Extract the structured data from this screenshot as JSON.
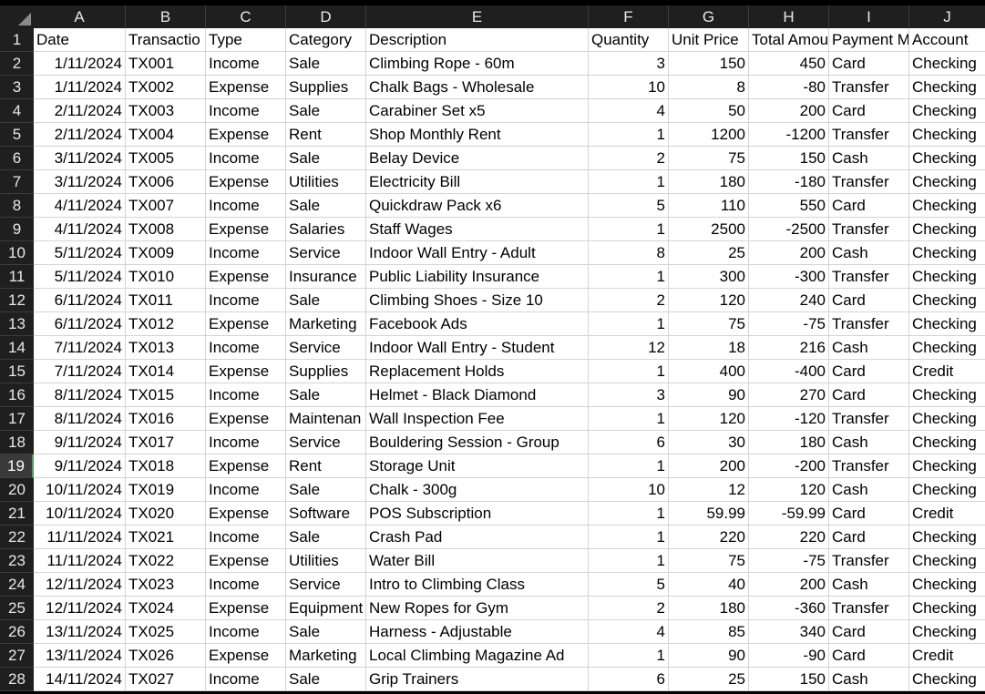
{
  "columns": [
    "A",
    "B",
    "C",
    "D",
    "E",
    "F",
    "G",
    "H",
    "I",
    "J"
  ],
  "rows": [
    {
      "n": "1",
      "cells": [
        "Date",
        "Transactio",
        "Type",
        "Category",
        "Description",
        "Quantity",
        "Unit Price",
        "Total Amou",
        "Payment M",
        "Account"
      ]
    },
    {
      "n": "2",
      "cells": [
        "1/11/2024",
        "TX001",
        "Income",
        "Sale",
        "Climbing Rope - 60m",
        "3",
        "150",
        "450",
        "Card",
        "Checking"
      ]
    },
    {
      "n": "3",
      "cells": [
        "1/11/2024",
        "TX002",
        "Expense",
        "Supplies",
        "Chalk Bags - Wholesale",
        "10",
        "8",
        "-80",
        "Transfer",
        "Checking"
      ]
    },
    {
      "n": "4",
      "cells": [
        "2/11/2024",
        "TX003",
        "Income",
        "Sale",
        "Carabiner Set x5",
        "4",
        "50",
        "200",
        "Card",
        "Checking"
      ]
    },
    {
      "n": "5",
      "cells": [
        "2/11/2024",
        "TX004",
        "Expense",
        "Rent",
        "Shop Monthly Rent",
        "1",
        "1200",
        "-1200",
        "Transfer",
        "Checking"
      ]
    },
    {
      "n": "6",
      "cells": [
        "3/11/2024",
        "TX005",
        "Income",
        "Sale",
        "Belay Device",
        "2",
        "75",
        "150",
        "Cash",
        "Checking"
      ]
    },
    {
      "n": "7",
      "cells": [
        "3/11/2024",
        "TX006",
        "Expense",
        "Utilities",
        "Electricity Bill",
        "1",
        "180",
        "-180",
        "Transfer",
        "Checking"
      ]
    },
    {
      "n": "8",
      "cells": [
        "4/11/2024",
        "TX007",
        "Income",
        "Sale",
        "Quickdraw Pack x6",
        "5",
        "110",
        "550",
        "Card",
        "Checking"
      ]
    },
    {
      "n": "9",
      "cells": [
        "4/11/2024",
        "TX008",
        "Expense",
        "Salaries",
        "Staff Wages",
        "1",
        "2500",
        "-2500",
        "Transfer",
        "Checking"
      ]
    },
    {
      "n": "10",
      "cells": [
        "5/11/2024",
        "TX009",
        "Income",
        "Service",
        "Indoor Wall Entry - Adult",
        "8",
        "25",
        "200",
        "Cash",
        "Checking"
      ]
    },
    {
      "n": "11",
      "cells": [
        "5/11/2024",
        "TX010",
        "Expense",
        "Insurance",
        "Public Liability Insurance",
        "1",
        "300",
        "-300",
        "Transfer",
        "Checking"
      ]
    },
    {
      "n": "12",
      "cells": [
        "6/11/2024",
        "TX011",
        "Income",
        "Sale",
        "Climbing Shoes - Size 10",
        "2",
        "120",
        "240",
        "Card",
        "Checking"
      ]
    },
    {
      "n": "13",
      "cells": [
        "6/11/2024",
        "TX012",
        "Expense",
        "Marketing",
        "Facebook Ads",
        "1",
        "75",
        "-75",
        "Transfer",
        "Checking"
      ]
    },
    {
      "n": "14",
      "cells": [
        "7/11/2024",
        "TX013",
        "Income",
        "Service",
        "Indoor Wall Entry - Student",
        "12",
        "18",
        "216",
        "Cash",
        "Checking"
      ]
    },
    {
      "n": "15",
      "cells": [
        "7/11/2024",
        "TX014",
        "Expense",
        "Supplies",
        "Replacement Holds",
        "1",
        "400",
        "-400",
        "Card",
        "Credit"
      ]
    },
    {
      "n": "16",
      "cells": [
        "8/11/2024",
        "TX015",
        "Income",
        "Sale",
        "Helmet - Black Diamond",
        "3",
        "90",
        "270",
        "Card",
        "Checking"
      ]
    },
    {
      "n": "17",
      "cells": [
        "8/11/2024",
        "TX016",
        "Expense",
        "Maintenan",
        "Wall Inspection Fee",
        "1",
        "120",
        "-120",
        "Transfer",
        "Checking"
      ]
    },
    {
      "n": "18",
      "cells": [
        "9/11/2024",
        "TX017",
        "Income",
        "Service",
        "Bouldering Session - Group",
        "6",
        "30",
        "180",
        "Cash",
        "Checking"
      ]
    },
    {
      "n": "19",
      "cells": [
        "9/11/2024",
        "TX018",
        "Expense",
        "Rent",
        "Storage Unit",
        "1",
        "200",
        "-200",
        "Transfer",
        "Checking"
      ]
    },
    {
      "n": "20",
      "cells": [
        "10/11/2024",
        "TX019",
        "Income",
        "Sale",
        "Chalk - 300g",
        "10",
        "12",
        "120",
        "Cash",
        "Checking"
      ]
    },
    {
      "n": "21",
      "cells": [
        "10/11/2024",
        "TX020",
        "Expense",
        "Software",
        "POS Subscription",
        "1",
        "59.99",
        "-59.99",
        "Card",
        "Credit"
      ]
    },
    {
      "n": "22",
      "cells": [
        "11/11/2024",
        "TX021",
        "Income",
        "Sale",
        "Crash Pad",
        "1",
        "220",
        "220",
        "Card",
        "Checking"
      ]
    },
    {
      "n": "23",
      "cells": [
        "11/11/2024",
        "TX022",
        "Expense",
        "Utilities",
        "Water Bill",
        "1",
        "75",
        "-75",
        "Transfer",
        "Checking"
      ]
    },
    {
      "n": "24",
      "cells": [
        "12/11/2024",
        "TX023",
        "Income",
        "Service",
        "Intro to Climbing Class",
        "5",
        "40",
        "200",
        "Cash",
        "Checking"
      ]
    },
    {
      "n": "25",
      "cells": [
        "12/11/2024",
        "TX024",
        "Expense",
        "Equipment",
        "New Ropes for Gym",
        "2",
        "180",
        "-360",
        "Transfer",
        "Checking"
      ]
    },
    {
      "n": "26",
      "cells": [
        "13/11/2024",
        "TX025",
        "Income",
        "Sale",
        "Harness - Adjustable",
        "4",
        "85",
        "340",
        "Card",
        "Checking"
      ]
    },
    {
      "n": "27",
      "cells": [
        "13/11/2024",
        "TX026",
        "Expense",
        "Marketing",
        "Local Climbing Magazine Ad",
        "1",
        "90",
        "-90",
        "Card",
        "Credit"
      ]
    },
    {
      "n": "28",
      "cells": [
        "14/11/2024",
        "TX027",
        "Income",
        "Sale",
        "Grip Trainers",
        "6",
        "25",
        "150",
        "Cash",
        "Checking"
      ]
    }
  ],
  "selected_row": "19"
}
